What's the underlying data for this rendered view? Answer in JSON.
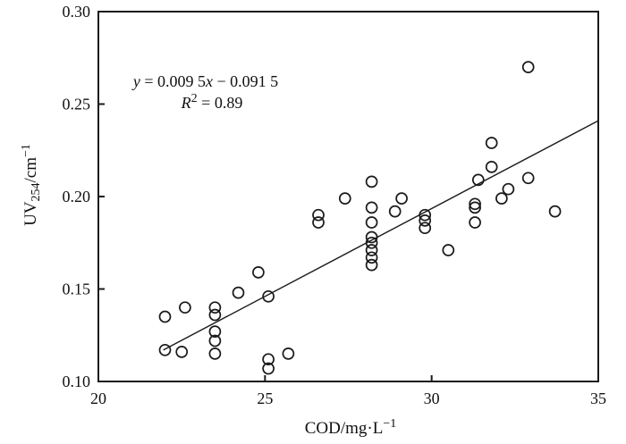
{
  "figure": {
    "background": "#ffffff",
    "axis_color": "#1a1a1a",
    "marker_color": "#1a1a1a",
    "line_color": "#1a1a1a"
  },
  "chart_data": {
    "type": "scatter",
    "title": "",
    "xlabel": "COD/mg·L−1",
    "ylabel": "UV254/cm−1",
    "xlim": [
      20,
      35
    ],
    "ylim": [
      0.1,
      0.3
    ],
    "x_ticks": [
      20,
      25,
      30,
      35
    ],
    "y_ticks": [
      0.3,
      0.25,
      0.2,
      0.15,
      0.1
    ],
    "grid": false,
    "legend": "none",
    "points": [
      [
        22.0,
        0.135
      ],
      [
        22.6,
        0.14
      ],
      [
        22.0,
        0.117
      ],
      [
        22.5,
        0.116
      ],
      [
        23.5,
        0.14
      ],
      [
        23.5,
        0.136
      ],
      [
        23.5,
        0.127
      ],
      [
        23.5,
        0.122
      ],
      [
        23.5,
        0.115
      ],
      [
        24.2,
        0.148
      ],
      [
        24.8,
        0.159
      ],
      [
        25.1,
        0.146
      ],
      [
        25.1,
        0.112
      ],
      [
        25.1,
        0.107
      ],
      [
        25.7,
        0.115
      ],
      [
        26.6,
        0.19
      ],
      [
        26.6,
        0.186
      ],
      [
        27.4,
        0.199
      ],
      [
        28.2,
        0.208
      ],
      [
        28.2,
        0.194
      ],
      [
        28.2,
        0.186
      ],
      [
        28.2,
        0.178
      ],
      [
        28.2,
        0.175
      ],
      [
        28.2,
        0.171
      ],
      [
        28.2,
        0.167
      ],
      [
        28.2,
        0.163
      ],
      [
        28.9,
        0.192
      ],
      [
        29.1,
        0.199
      ],
      [
        29.8,
        0.19
      ],
      [
        29.8,
        0.187
      ],
      [
        29.8,
        0.183
      ],
      [
        30.5,
        0.171
      ],
      [
        31.4,
        0.209
      ],
      [
        31.3,
        0.196
      ],
      [
        31.3,
        0.194
      ],
      [
        31.3,
        0.186
      ],
      [
        31.8,
        0.229
      ],
      [
        31.8,
        0.216
      ],
      [
        32.1,
        0.199
      ],
      [
        32.3,
        0.204
      ],
      [
        32.9,
        0.27
      ],
      [
        32.9,
        0.21
      ],
      [
        33.7,
        0.192
      ]
    ],
    "trendline": {
      "slope": 0.0095,
      "intercept": -0.0915,
      "x_start": 21.95,
      "x_end": 35,
      "equation_label": "y = 0.009 5x − 0.091 5",
      "r_squared_label": "R2 = 0.89",
      "r_squared": 0.89
    }
  },
  "labels": {
    "x_tick_labels": [
      "20",
      "25",
      "30",
      "35"
    ],
    "y_tick_labels": [
      "0.30",
      "0.25",
      "0.20",
      "0.15",
      "0.10"
    ],
    "xlabel_parts": [
      {
        "t": "COD/mg·L"
      },
      {
        "t": "−1",
        "sup": 1
      }
    ],
    "ylabel_parts": [
      {
        "t": "UV"
      },
      {
        "t": "254",
        "sub": 1
      },
      {
        "t": "/cm"
      },
      {
        "t": "−1",
        "sup": 1
      }
    ],
    "equation_parts": [
      {
        "t": "y",
        "i": 1
      },
      {
        "t": " = 0.009 5"
      },
      {
        "t": "x",
        "i": 1
      },
      {
        "t": " − 0.091 5"
      }
    ],
    "r2_parts": [
      {
        "t": "R",
        "i": 1
      },
      {
        "t": "2",
        "sup": 1
      },
      {
        "t": " = 0.89"
      }
    ]
  }
}
